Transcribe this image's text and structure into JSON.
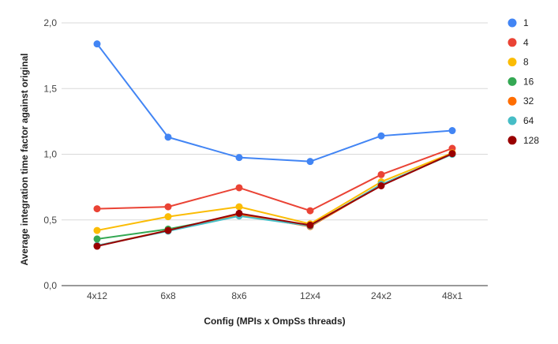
{
  "chart_data": {
    "type": "line",
    "xlabel": "Config (MPIs x OmpSs threads)",
    "ylabel": "Average integration time factor against original",
    "categories": [
      "4x12",
      "6x8",
      "8x6",
      "12x4",
      "24x2",
      "48x1"
    ],
    "ylim": [
      0,
      2
    ],
    "yticks": [
      0,
      0.5,
      1,
      1.5,
      2
    ],
    "ytick_labels": [
      "0,0",
      "0,5",
      "1,0",
      "1,5",
      "2,0"
    ],
    "grid": true,
    "legend_position": "right",
    "series": [
      {
        "name": "1",
        "color": "#4285f4",
        "values": [
          1.84,
          1.13,
          0.975,
          0.945,
          1.14,
          1.18
        ]
      },
      {
        "name": "4",
        "color": "#ea4335",
        "values": [
          0.585,
          0.6,
          0.745,
          0.57,
          0.845,
          1.045
        ]
      },
      {
        "name": "8",
        "color": "#fbbc04",
        "values": [
          0.42,
          0.525,
          0.6,
          0.47,
          0.79,
          1.01
        ]
      },
      {
        "name": "16",
        "color": "#34a853",
        "values": [
          0.355,
          0.43,
          0.535,
          0.455,
          0.77,
          1.0
        ]
      },
      {
        "name": "32",
        "color": "#ff6d01",
        "values": [
          0.305,
          0.42,
          0.54,
          0.45,
          0.765,
          1.005
        ]
      },
      {
        "name": "64",
        "color": "#46bdc6",
        "values": [
          0.305,
          0.415,
          0.53,
          0.455,
          0.77,
          1.0
        ]
      },
      {
        "name": "128",
        "color": "#990000",
        "values": [
          0.3,
          0.42,
          0.55,
          0.46,
          0.76,
          1.005
        ]
      }
    ]
  }
}
